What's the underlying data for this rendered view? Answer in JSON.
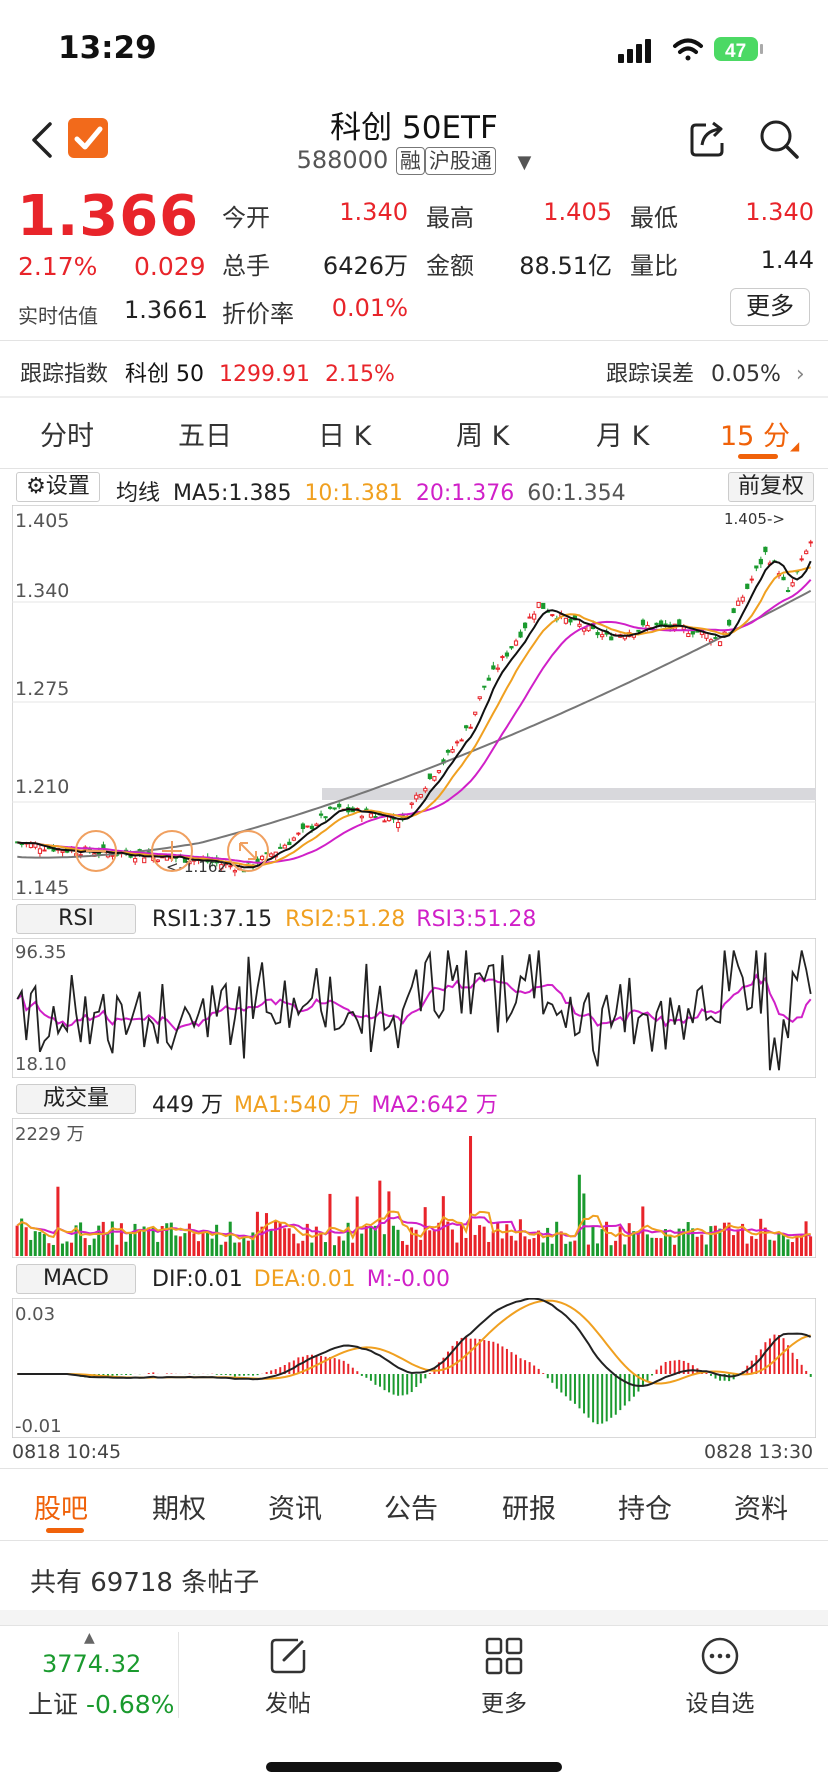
{
  "status": {
    "time": "13:29",
    "battery": "47"
  },
  "header": {
    "title": "科创 50ETF",
    "code": "588000",
    "tag1": "融",
    "tag2": "沪股通"
  },
  "quote": {
    "price": "1.366",
    "change_pct": "2.17%",
    "change": "0.029",
    "est_label": "实时估值",
    "est_value": "1.3661",
    "premium_label": "折价率",
    "premium_value": "0.01%",
    "open_label": "今开",
    "open": "1.340",
    "high_label": "最高",
    "high": "1.405",
    "low_label": "最低",
    "low": "1.340",
    "vol_label": "总手",
    "vol": "6426万",
    "amount_label": "金额",
    "amount": "88.51亿",
    "ratio_label": "量比",
    "ratio": "1.44",
    "more": "更多"
  },
  "tracking": {
    "label": "跟踪指数",
    "index_name": "科创 50",
    "index_value": "1299.91",
    "index_pct": "2.15%",
    "error_label": "跟踪误差",
    "error_value": "0.05%"
  },
  "ktabs": [
    "分时",
    "五日",
    "日 K",
    "周 K",
    "月 K",
    "15 分"
  ],
  "main_chart": {
    "settings": "设置",
    "ma_label": "均线",
    "ma5": "MA5:1.385",
    "ma10": "10:1.381",
    "ma20": "20:1.376",
    "ma60": "60:1.354",
    "adjust": "前复权",
    "ticks": [
      "1.405",
      "1.340",
      "1.275",
      "1.210",
      "1.145"
    ],
    "high_mark": "1.405->",
    "low_mark": "<-1.162",
    "colors": {
      "up": "#e8242a",
      "down": "#1a9a2e",
      "ma5": "#111111",
      "ma10": "#f0a020",
      "ma20": "#d020c8",
      "ma60": "#777777"
    }
  },
  "rsi": {
    "label": "RSI",
    "rsi1": "RSI1:37.15",
    "rsi2": "RSI2:51.28",
    "rsi3": "RSI3:51.28",
    "top": "96.35",
    "bottom": "18.10"
  },
  "volume": {
    "label": "成交量",
    "value": "449 万",
    "ma1": "MA1:540 万",
    "ma2": "MA2:642 万",
    "top": "2229 万"
  },
  "macd": {
    "label": "MACD",
    "dif": "DIF:0.01",
    "dea": "DEA:0.01",
    "m": "M:-0.00",
    "top": "0.03",
    "bottom": "-0.01"
  },
  "time_axis": {
    "start": "0818 10:45",
    "end": "0828 13:30"
  },
  "bottom_tabs": [
    "股吧",
    "期权",
    "资讯",
    "公告",
    "研报",
    "持仓",
    "资料"
  ],
  "posts": "共有 69718 条帖子",
  "footer": {
    "index_value": "3774.32",
    "index_name": "上证",
    "index_pct": "-0.68%",
    "post": "发帖",
    "more": "更多",
    "watch": "设自选"
  }
}
